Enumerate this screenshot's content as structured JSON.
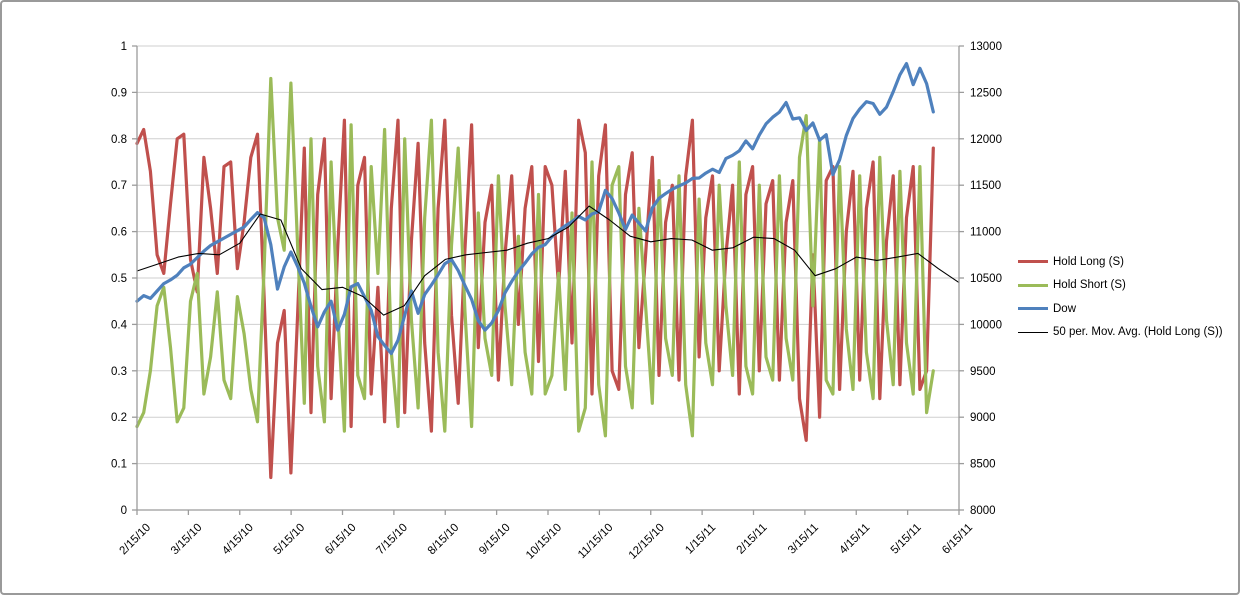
{
  "chart_data": {
    "type": "line",
    "title": "",
    "xlabel": "",
    "ylabel_left": "",
    "ylabel_right": "",
    "grid": true,
    "legend_position": "right",
    "x_tick_labels": [
      "2/15/10",
      "3/15/10",
      "4/15/10",
      "5/15/10",
      "6/15/10",
      "7/15/10",
      "8/15/10",
      "9/15/10",
      "10/15/10",
      "11/15/10",
      "12/15/10",
      "1/15/11",
      "2/15/11",
      "3/15/11",
      "4/15/11",
      "5/15/11",
      "6/15/11"
    ],
    "x_range_months": 16,
    "y_left_axis": {
      "min": 0,
      "max": 1,
      "step": 0.1,
      "labels": [
        "0",
        "0.1",
        "0.2",
        "0.3",
        "0.4",
        "0.5",
        "0.6",
        "0.7",
        "0.8",
        "0.9",
        "1"
      ]
    },
    "y_right_axis": {
      "min": 8000,
      "max": 13000,
      "step": 500,
      "labels": [
        "8000",
        "8500",
        "9000",
        "9500",
        "10000",
        "10500",
        "11000",
        "11500",
        "12000",
        "12500",
        "13000"
      ]
    },
    "series": [
      {
        "name": "Hold Long (S)",
        "color": "#C0504D",
        "axis": "left",
        "line_width": 3.2,
        "t_start": 0,
        "t_end": 15.5,
        "values": [
          0.79,
          0.82,
          0.73,
          0.55,
          0.51,
          0.66,
          0.8,
          0.81,
          0.54,
          0.47,
          0.76,
          0.65,
          0.51,
          0.74,
          0.75,
          0.52,
          0.62,
          0.76,
          0.81,
          0.46,
          0.07,
          0.36,
          0.43,
          0.08,
          0.42,
          0.78,
          0.21,
          0.68,
          0.8,
          0.24,
          0.57,
          0.84,
          0.18,
          0.7,
          0.76,
          0.25,
          0.48,
          0.19,
          0.65,
          0.84,
          0.21,
          0.58,
          0.79,
          0.36,
          0.17,
          0.65,
          0.84,
          0.42,
          0.23,
          0.56,
          0.83,
          0.35,
          0.62,
          0.7,
          0.28,
          0.55,
          0.72,
          0.4,
          0.65,
          0.74,
          0.32,
          0.74,
          0.7,
          0.48,
          0.73,
          0.36,
          0.84,
          0.77,
          0.25,
          0.72,
          0.83,
          0.3,
          0.26,
          0.68,
          0.77,
          0.35,
          0.55,
          0.76,
          0.29,
          0.62,
          0.7,
          0.28,
          0.72,
          0.84,
          0.33,
          0.63,
          0.72,
          0.3,
          0.55,
          0.7,
          0.25,
          0.68,
          0.74,
          0.3,
          0.66,
          0.71,
          0.28,
          0.62,
          0.71,
          0.24,
          0.15,
          0.55,
          0.2,
          0.71,
          0.74,
          0.26,
          0.6,
          0.73,
          0.28,
          0.65,
          0.75,
          0.24,
          0.58,
          0.72,
          0.27,
          0.63,
          0.74,
          0.26,
          0.3,
          0.78
        ]
      },
      {
        "name": "Hold Short (S)",
        "color": "#9BBB59",
        "axis": "left",
        "line_width": 3.2,
        "t_start": 0,
        "t_end": 15.5,
        "values": [
          0.18,
          0.21,
          0.3,
          0.44,
          0.48,
          0.35,
          0.19,
          0.22,
          0.45,
          0.51,
          0.25,
          0.33,
          0.47,
          0.28,
          0.24,
          0.46,
          0.38,
          0.26,
          0.19,
          0.52,
          0.93,
          0.63,
          0.56,
          0.92,
          0.57,
          0.23,
          0.8,
          0.31,
          0.19,
          0.75,
          0.42,
          0.17,
          0.83,
          0.29,
          0.24,
          0.74,
          0.51,
          0.82,
          0.34,
          0.18,
          0.8,
          0.41,
          0.22,
          0.63,
          0.84,
          0.34,
          0.17,
          0.57,
          0.78,
          0.43,
          0.18,
          0.64,
          0.37,
          0.29,
          0.72,
          0.44,
          0.27,
          0.59,
          0.34,
          0.25,
          0.68,
          0.25,
          0.29,
          0.51,
          0.26,
          0.64,
          0.17,
          0.22,
          0.75,
          0.27,
          0.16,
          0.7,
          0.74,
          0.31,
          0.22,
          0.65,
          0.44,
          0.23,
          0.71,
          0.37,
          0.29,
          0.72,
          0.27,
          0.16,
          0.67,
          0.36,
          0.27,
          0.7,
          0.44,
          0.29,
          0.75,
          0.31,
          0.25,
          0.7,
          0.33,
          0.28,
          0.72,
          0.37,
          0.28,
          0.76,
          0.85,
          0.44,
          0.8,
          0.28,
          0.25,
          0.74,
          0.39,
          0.26,
          0.72,
          0.34,
          0.24,
          0.76,
          0.41,
          0.27,
          0.73,
          0.36,
          0.25,
          0.74,
          0.21,
          0.3
        ]
      },
      {
        "name": "Dow",
        "color": "#4F81BD",
        "axis": "right",
        "line_width": 3.2,
        "t_start": 0,
        "t_end": 15.5,
        "values": [
          10250,
          10310,
          10280,
          10360,
          10440,
          10480,
          10530,
          10610,
          10650,
          10720,
          10790,
          10850,
          10890,
          10930,
          10970,
          11010,
          11050,
          11130,
          11205,
          11150,
          10860,
          10380,
          10620,
          10780,
          10625,
          10444,
          10193,
          9974,
          10136,
          10250,
          9939,
          10110,
          10405,
          10440,
          10298,
          10152,
          9870,
          9774,
          9686,
          9830,
          10098,
          10360,
          10120,
          10322,
          10425,
          10536,
          10654,
          10698,
          10580,
          10420,
          10271,
          10040,
          9939,
          10015,
          10150,
          10340,
          10463,
          10572,
          10662,
          10760,
          10830,
          10860,
          10945,
          11010,
          11062,
          11107,
          11164,
          11126,
          11190,
          11215,
          11444,
          11357,
          11202,
          11023,
          11178,
          11092,
          11006,
          11255,
          11359,
          11410,
          11457,
          11492,
          11525,
          11573,
          11578,
          11630,
          11672,
          11637,
          11787,
          11822,
          11871,
          11977,
          11892,
          12040,
          12161,
          12233,
          12288,
          12391,
          12213,
          12226,
          12090,
          12170,
          11985,
          12044,
          11613,
          11775,
          12036,
          12220,
          12320,
          12400,
          12380,
          12264,
          12342,
          12506,
          12690,
          12810,
          12584,
          12760,
          12595,
          12290
        ]
      },
      {
        "name": "50 per. Mov. Avg. (Hold Long (S))",
        "color": "#000000",
        "axis": "left",
        "line_width": 1.1,
        "t_start": 0,
        "t_end": 16,
        "values": [
          0.515,
          0.53,
          0.545,
          0.553,
          0.55,
          0.575,
          0.638,
          0.625,
          0.52,
          0.475,
          0.48,
          0.46,
          0.42,
          0.44,
          0.505,
          0.54,
          0.55,
          0.555,
          0.56,
          0.575,
          0.585,
          0.61,
          0.655,
          0.625,
          0.59,
          0.578,
          0.585,
          0.582,
          0.56,
          0.565,
          0.588,
          0.585,
          0.56,
          0.505,
          0.52,
          0.545,
          0.538,
          0.545,
          0.553,
          0.52,
          0.49
        ]
      }
    ]
  },
  "colors": {
    "background": "#FFFFFF",
    "frame_border": "#9A9A9A",
    "gridline": "#CFCFCF",
    "axis": "#9B9B9B",
    "text": "#000000"
  }
}
